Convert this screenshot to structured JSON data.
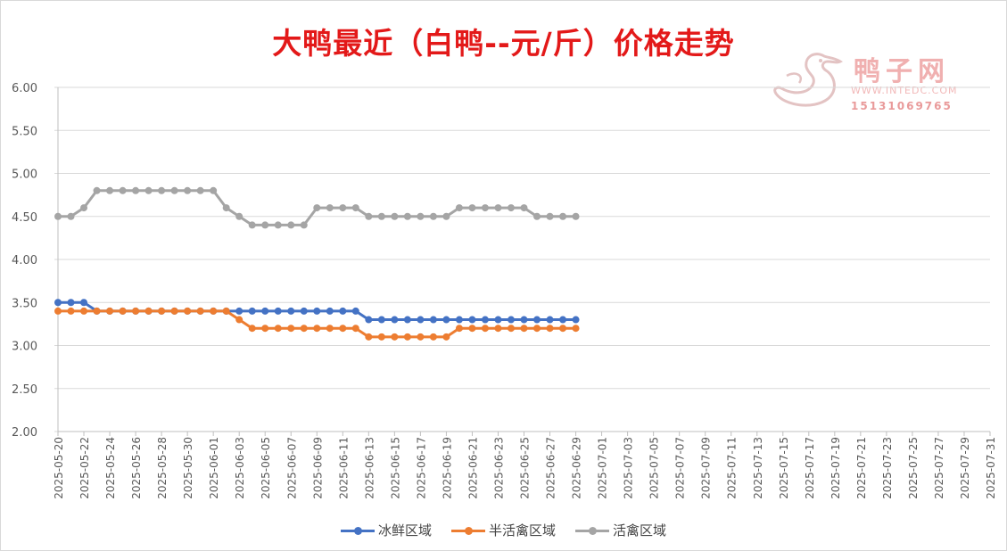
{
  "chart_data": {
    "type": "line",
    "title": "大鸭最近（白鸭--元/斤）价格走势",
    "ylim": [
      2.0,
      6.0
    ],
    "yticks": [
      "6.00",
      "5.50",
      "5.00",
      "4.50",
      "4.00",
      "3.50",
      "3.00",
      "2.50",
      "2.00"
    ],
    "grid": true,
    "legend_position": "bottom",
    "x_labels": [
      "2025-05-20",
      "2025-05-22",
      "2025-05-24",
      "2025-05-26",
      "2025-05-28",
      "2025-05-30",
      "2025-06-01",
      "2025-06-03",
      "2025-06-05",
      "2025-06-07",
      "2025-06-09",
      "2025-06-11",
      "2025-06-13",
      "2025-06-15",
      "2025-06-17",
      "2025-06-19",
      "2025-06-21",
      "2025-06-23",
      "2025-06-25",
      "2025-06-27",
      "2025-06-29",
      "2025-07-01",
      "2025-07-03",
      "2025-07-05",
      "2025-07-07",
      "2025-07-09",
      "2025-07-11",
      "2025-07-13",
      "2025-07-15",
      "2025-07-17",
      "2025-07-19",
      "2025-07-21",
      "2025-07-23",
      "2025-07-25",
      "2025-07-27",
      "2025-07-29",
      "2025-07-31"
    ],
    "x": [
      "2025-05-20",
      "2025-05-21",
      "2025-05-22",
      "2025-05-23",
      "2025-05-24",
      "2025-05-25",
      "2025-05-26",
      "2025-05-27",
      "2025-05-28",
      "2025-05-29",
      "2025-05-30",
      "2025-05-31",
      "2025-06-01",
      "2025-06-02",
      "2025-06-03",
      "2025-06-04",
      "2025-06-05",
      "2025-06-06",
      "2025-06-07",
      "2025-06-08",
      "2025-06-09",
      "2025-06-10",
      "2025-06-11",
      "2025-06-12",
      "2025-06-13",
      "2025-06-14",
      "2025-06-15",
      "2025-06-16",
      "2025-06-17",
      "2025-06-18",
      "2025-06-19",
      "2025-06-20",
      "2025-06-21",
      "2025-06-22",
      "2025-06-23",
      "2025-06-24",
      "2025-06-25",
      "2025-06-26",
      "2025-06-27",
      "2025-06-28",
      "2025-06-29"
    ],
    "series": [
      {
        "name": "冰鲜区域",
        "color": "#4472c4",
        "values": [
          3.5,
          3.5,
          3.5,
          3.4,
          3.4,
          3.4,
          3.4,
          3.4,
          3.4,
          3.4,
          3.4,
          3.4,
          3.4,
          3.4,
          3.4,
          3.4,
          3.4,
          3.4,
          3.4,
          3.4,
          3.4,
          3.4,
          3.4,
          3.4,
          3.3,
          3.3,
          3.3,
          3.3,
          3.3,
          3.3,
          3.3,
          3.3,
          3.3,
          3.3,
          3.3,
          3.3,
          3.3,
          3.3,
          3.3,
          3.3,
          3.3
        ]
      },
      {
        "name": "半活禽区域",
        "color": "#ed7d31",
        "values": [
          3.4,
          3.4,
          3.4,
          3.4,
          3.4,
          3.4,
          3.4,
          3.4,
          3.4,
          3.4,
          3.4,
          3.4,
          3.4,
          3.4,
          3.3,
          3.2,
          3.2,
          3.2,
          3.2,
          3.2,
          3.2,
          3.2,
          3.2,
          3.2,
          3.1,
          3.1,
          3.1,
          3.1,
          3.1,
          3.1,
          3.1,
          3.2,
          3.2,
          3.2,
          3.2,
          3.2,
          3.2,
          3.2,
          3.2,
          3.2,
          3.2
        ]
      },
      {
        "name": "活禽区域",
        "color": "#a5a5a5",
        "values": [
          4.5,
          4.5,
          4.6,
          4.8,
          4.8,
          4.8,
          4.8,
          4.8,
          4.8,
          4.8,
          4.8,
          4.8,
          4.8,
          4.6,
          4.5,
          4.4,
          4.4,
          4.4,
          4.4,
          4.4,
          4.6,
          4.6,
          4.6,
          4.6,
          4.5,
          4.5,
          4.5,
          4.5,
          4.5,
          4.5,
          4.5,
          4.6,
          4.6,
          4.6,
          4.6,
          4.6,
          4.6,
          4.5,
          4.5,
          4.5,
          4.5
        ]
      }
    ]
  },
  "watermark": {
    "name": "鸭子网",
    "url": "WWW.INTEDC.COM",
    "phone": "15131069765"
  }
}
